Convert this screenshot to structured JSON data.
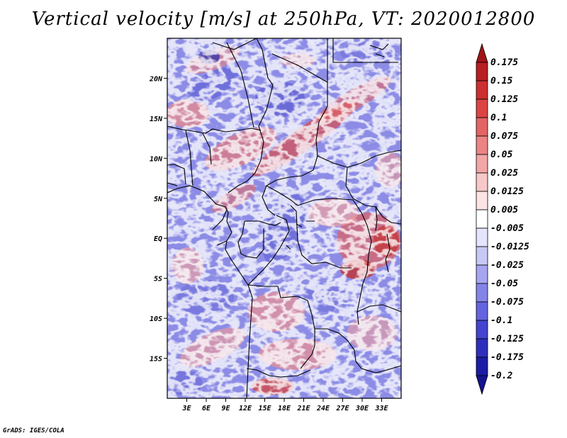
{
  "title": "Vertical velocity [m/s] at 250hPa, VT: 2020012800",
  "credit": "GrADS: IGES/COLA",
  "map": {
    "lon_range": [
      0,
      36
    ],
    "lat_range": [
      -20,
      25
    ],
    "lat_ticks": [
      {
        "value": 20,
        "label": "20N"
      },
      {
        "value": 15,
        "label": "15N"
      },
      {
        "value": 10,
        "label": "10N"
      },
      {
        "value": 5,
        "label": "5N"
      },
      {
        "value": 0,
        "label": "EQ"
      },
      {
        "value": -5,
        "label": "5S"
      },
      {
        "value": -10,
        "label": "10S"
      },
      {
        "value": -15,
        "label": "15S"
      }
    ],
    "lon_ticks": [
      {
        "value": 3,
        "label": "3E"
      },
      {
        "value": 6,
        "label": "6E"
      },
      {
        "value": 9,
        "label": "9E"
      },
      {
        "value": 12,
        "label": "12E"
      },
      {
        "value": 15,
        "label": "15E"
      },
      {
        "value": 18,
        "label": "18E"
      },
      {
        "value": 21,
        "label": "21E"
      },
      {
        "value": 24,
        "label": "24E"
      },
      {
        "value": 27,
        "label": "27E"
      },
      {
        "value": 30,
        "label": "30E"
      },
      {
        "value": 33,
        "label": "33E"
      }
    ]
  },
  "colorbar": {
    "labels": [
      "0.175",
      "0.15",
      "0.125",
      "0.1",
      "0.075",
      "0.05",
      "0.025",
      "0.0125",
      "0.005",
      "-0.005",
      "-0.0125",
      "-0.025",
      "-0.05",
      "-0.075",
      "-0.1",
      "-0.125",
      "-0.175",
      "-0.2"
    ],
    "colors": [
      "#a01416",
      "#b81e22",
      "#cd2e30",
      "#dc4444",
      "#e46464",
      "#ec8484",
      "#f2a6a6",
      "#f8c8c8",
      "#fce4e4",
      "#ffffff",
      "#e4e4fc",
      "#c8c8f6",
      "#a6a6f0",
      "#8484e8",
      "#6464e0",
      "#4444d0",
      "#2e2ebc",
      "#1c1ca6",
      "#14148e"
    ]
  }
}
